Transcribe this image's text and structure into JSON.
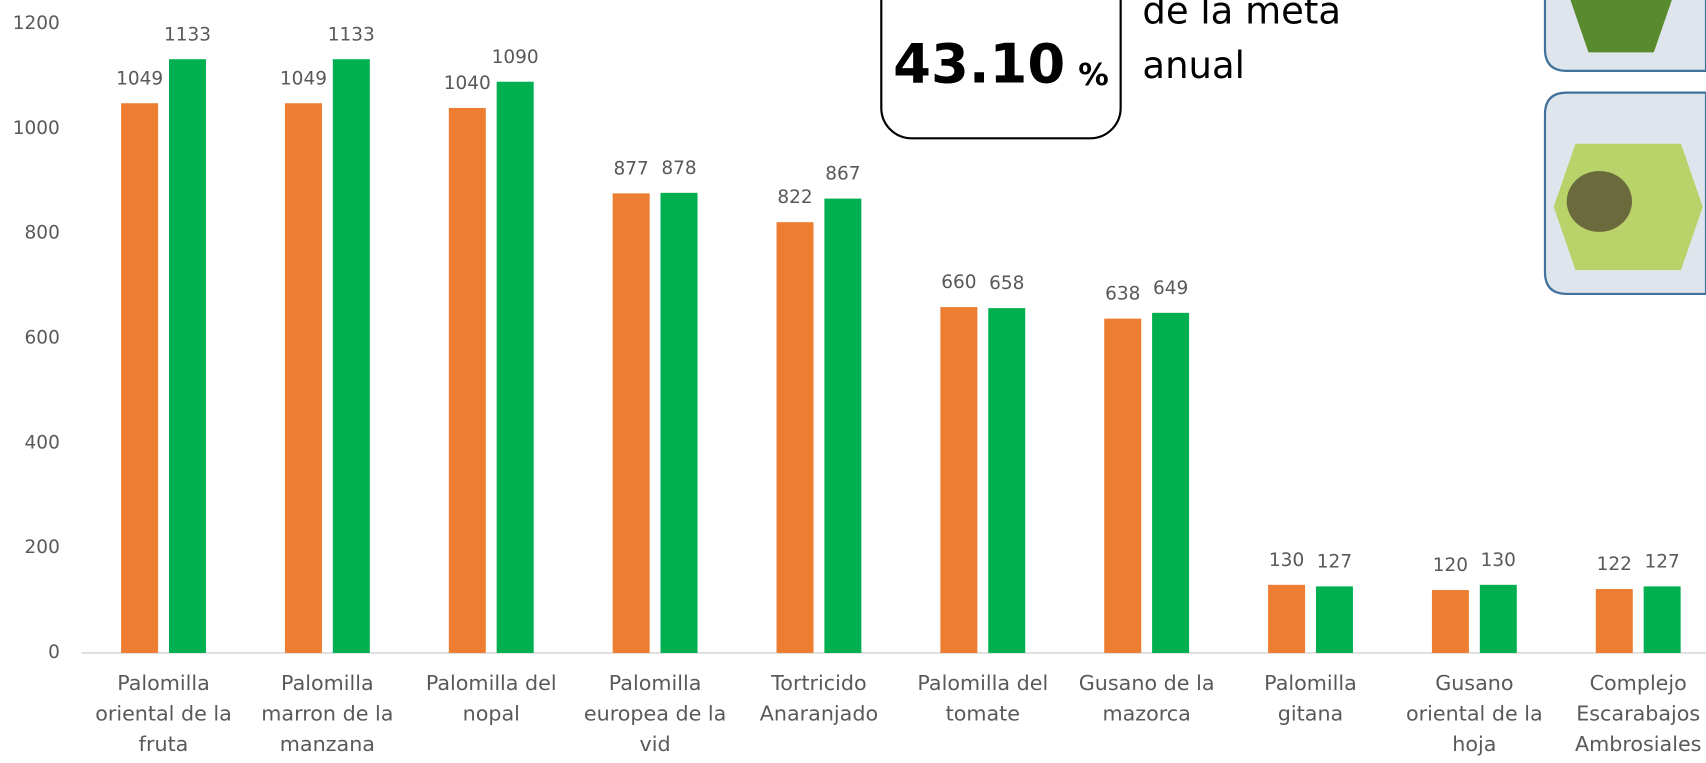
{
  "chart_data": {
    "type": "bar",
    "categories": [
      "Palomilla oriental de la fruta",
      "Palomilla marron de la manzana",
      "Palomilla del nopal",
      "Palomilla europea de la vid",
      "Tortricido Anaranjado",
      "Palomilla del tomate",
      "Gusano de la mazorca",
      "Palomilla gitana",
      "Gusano oriental de la hoja",
      "Complejo Escarabajos Ambrosiales"
    ],
    "series": [
      {
        "color": "#ed7d31",
        "values": [
          1049,
          1049,
          1040,
          877,
          822,
          660,
          638,
          130,
          120,
          122
        ]
      },
      {
        "color": "#00b050",
        "values": [
          1133,
          1133,
          1090,
          878,
          867,
          658,
          649,
          127,
          130,
          127
        ]
      }
    ],
    "ylim": [
      0,
      1200
    ],
    "yticks": [
      0,
      200,
      400,
      600,
      800,
      1000,
      1200
    ],
    "grid": false,
    "annotations": {
      "kpi_value": "43.10",
      "kpi_unit": "%",
      "kpi_text": [
        "de la meta",
        "anual"
      ]
    }
  }
}
